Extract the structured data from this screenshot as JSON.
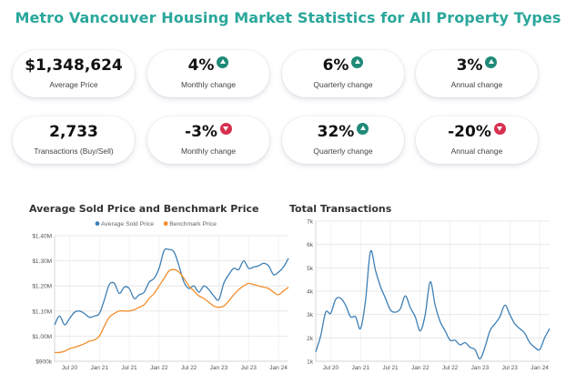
{
  "page": {
    "title": "Metro Vancouver Housing Market Statistics for All Property Types"
  },
  "colors": {
    "accent": "#2aa79b",
    "up": "#1f8a78",
    "down": "#d6304f",
    "avg_line": "#3d7fb5",
    "bench_line": "#f28e2b"
  },
  "cards": [
    {
      "value": "$1,348,624",
      "label": "Average Price",
      "badge": ""
    },
    {
      "value": "4%",
      "label": "Monthly change",
      "badge": "up"
    },
    {
      "value": "6%",
      "label": "Quarterly change",
      "badge": "up"
    },
    {
      "value": "3%",
      "label": "Annual change",
      "badge": "up"
    },
    {
      "value": "2,733",
      "label": "Transactions (Buy/Sell)",
      "badge": ""
    },
    {
      "value": "-3%",
      "label": "Monthly  change",
      "badge": "down"
    },
    {
      "value": "32%",
      "label": "Quarterly  change",
      "badge": "up"
    },
    {
      "value": "-20%",
      "label": "Annual  change",
      "badge": "down"
    }
  ],
  "chart_data": [
    {
      "type": "line",
      "title": "Average Sold Price and Benchmark Price",
      "legend_position": "top",
      "xticks": [
        "Jul 20",
        "Jan 21",
        "Jul 21",
        "Jan 22",
        "Jul 22",
        "Jan 23",
        "Jul 23",
        "Jan 24"
      ],
      "yticks": [
        "$900k",
        "$1.00M",
        "$1.10M",
        "$1.20M",
        "$1.30M",
        "$1.40M"
      ],
      "ylim": [
        900000,
        1400000
      ],
      "grid": true,
      "x": [
        "2020-04",
        "2020-05",
        "2020-06",
        "2020-07",
        "2020-08",
        "2020-09",
        "2020-10",
        "2020-11",
        "2020-12",
        "2021-01",
        "2021-02",
        "2021-03",
        "2021-04",
        "2021-05",
        "2021-06",
        "2021-07",
        "2021-08",
        "2021-09",
        "2021-10",
        "2021-11",
        "2021-12",
        "2022-01",
        "2022-02",
        "2022-03",
        "2022-04",
        "2022-05",
        "2022-06",
        "2022-07",
        "2022-08",
        "2022-09",
        "2022-10",
        "2022-11",
        "2022-12",
        "2023-01",
        "2023-02",
        "2023-03",
        "2023-04",
        "2023-05",
        "2023-06",
        "2023-07",
        "2023-08",
        "2023-09",
        "2023-10",
        "2023-11",
        "2023-12",
        "2024-01",
        "2024-02",
        "2024-03"
      ],
      "series": [
        {
          "name": "Average Sold Price",
          "color": "#3d7fb5",
          "values": [
            1045000,
            1080000,
            1045000,
            1070000,
            1095000,
            1100000,
            1090000,
            1075000,
            1080000,
            1090000,
            1145000,
            1205000,
            1210000,
            1170000,
            1195000,
            1190000,
            1150000,
            1165000,
            1175000,
            1215000,
            1230000,
            1270000,
            1340000,
            1345000,
            1335000,
            1280000,
            1215000,
            1190000,
            1200000,
            1175000,
            1200000,
            1185000,
            1160000,
            1145000,
            1210000,
            1245000,
            1270000,
            1265000,
            1300000,
            1270000,
            1275000,
            1280000,
            1290000,
            1280000,
            1245000,
            1255000,
            1275000,
            1310000
          ]
        },
        {
          "name": "Benchmark Price",
          "color": "#f28e2b",
          "values": [
            935000,
            935000,
            940000,
            950000,
            955000,
            962000,
            970000,
            980000,
            985000,
            1000000,
            1040000,
            1075000,
            1090000,
            1100000,
            1100000,
            1100000,
            1105000,
            1115000,
            1125000,
            1150000,
            1170000,
            1200000,
            1230000,
            1260000,
            1265000,
            1255000,
            1230000,
            1200000,
            1180000,
            1160000,
            1150000,
            1135000,
            1120000,
            1115000,
            1120000,
            1140000,
            1165000,
            1185000,
            1200000,
            1210000,
            1205000,
            1200000,
            1195000,
            1190000,
            1175000,
            1165000,
            1180000,
            1195000
          ]
        }
      ]
    },
    {
      "type": "line",
      "title": "Total Transactions",
      "xticks": [
        "Jul 20",
        "Jan 21",
        "Jul 21",
        "Jan 22",
        "Jul 22",
        "Jan 23",
        "Jul 23",
        "Jan 24"
      ],
      "yticks": [
        "1k",
        "2k",
        "3k",
        "4k",
        "5k",
        "6k",
        "7k"
      ],
      "ylim": [
        1000,
        7000
      ],
      "grid": true,
      "x": [
        "2020-04",
        "2020-05",
        "2020-06",
        "2020-07",
        "2020-08",
        "2020-09",
        "2020-10",
        "2020-11",
        "2020-12",
        "2021-01",
        "2021-02",
        "2021-03",
        "2021-04",
        "2021-05",
        "2021-06",
        "2021-07",
        "2021-08",
        "2021-09",
        "2021-10",
        "2021-11",
        "2021-12",
        "2022-01",
        "2022-02",
        "2022-03",
        "2022-04",
        "2022-05",
        "2022-06",
        "2022-07",
        "2022-08",
        "2022-09",
        "2022-10",
        "2022-11",
        "2022-12",
        "2023-01",
        "2023-02",
        "2023-03",
        "2023-04",
        "2023-05",
        "2023-06",
        "2023-07",
        "2023-08",
        "2023-09",
        "2023-10",
        "2023-11",
        "2023-12",
        "2024-01",
        "2024-02",
        "2024-03"
      ],
      "series": [
        {
          "name": "",
          "color": "#3d7fb5",
          "values": [
            1400,
            2100,
            3100,
            3050,
            3650,
            3700,
            3400,
            2900,
            2900,
            2400,
            3600,
            5700,
            4900,
            4200,
            3700,
            3200,
            3100,
            3250,
            3800,
            3300,
            2900,
            2300,
            3000,
            4400,
            3400,
            2700,
            2300,
            1900,
            1900,
            1700,
            1800,
            1600,
            1500,
            1100,
            1600,
            2300,
            2600,
            2900,
            3400,
            3000,
            2600,
            2400,
            2200,
            1800,
            1600,
            1500,
            2000,
            2400
          ]
        }
      ]
    }
  ]
}
